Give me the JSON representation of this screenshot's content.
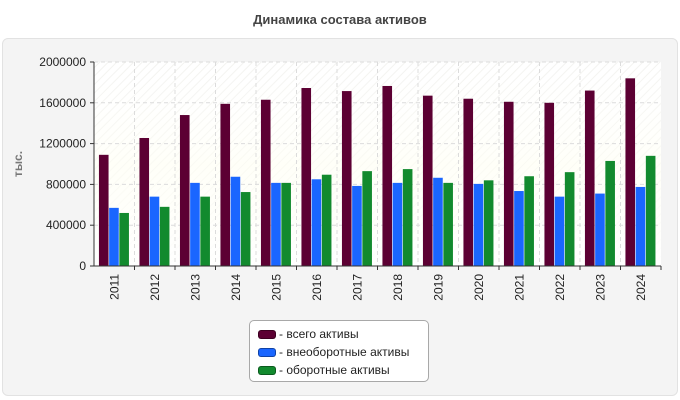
{
  "chart_data": {
    "type": "bar",
    "title": "Динамика состава активов",
    "ylabel": "тыс.",
    "xlabel": "",
    "categories": [
      "2011",
      "2012",
      "2013",
      "2014",
      "2015",
      "2016",
      "2017",
      "2018",
      "2019",
      "2020",
      "2021",
      "2022",
      "2023",
      "2024"
    ],
    "ylim": [
      0,
      2000000
    ],
    "yticks": [
      "0",
      "400000",
      "800000",
      "1200000",
      "1600000",
      "2000000"
    ],
    "grid": true,
    "legend_position": "bottom",
    "series": [
      {
        "name": "- всего активы",
        "color": "#5c0033",
        "values": [
          1090000,
          1255000,
          1480000,
          1590000,
          1630000,
          1745000,
          1715000,
          1765000,
          1670000,
          1640000,
          1610000,
          1600000,
          1720000,
          1840000
        ]
      },
      {
        "name": "- внеоборотные активы",
        "color": "#1a66ff",
        "values": [
          570000,
          680000,
          815000,
          875000,
          815000,
          850000,
          785000,
          815000,
          865000,
          805000,
          735000,
          680000,
          710000,
          775000
        ]
      },
      {
        "name": "- оборотные активы",
        "color": "#128a2e",
        "values": [
          520000,
          580000,
          680000,
          725000,
          815000,
          895000,
          930000,
          950000,
          815000,
          840000,
          880000,
          920000,
          1030000,
          1080000
        ]
      }
    ]
  }
}
